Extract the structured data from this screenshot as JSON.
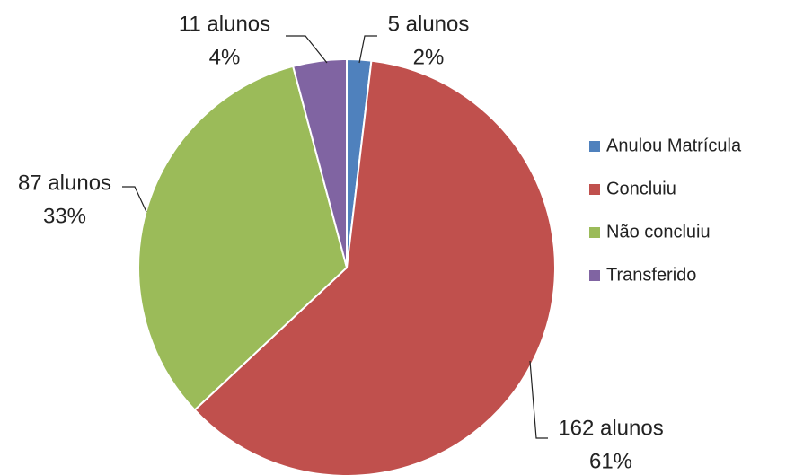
{
  "chart_data": {
    "type": "pie",
    "categories": [
      "Anulou Matrícula",
      "Concluiu",
      "Não concluiu",
      "Transferido"
    ],
    "values": [
      5,
      162,
      87,
      11
    ],
    "value_labels": [
      "5 alunos",
      "162 alunos",
      "87 alunos",
      "11 alunos"
    ],
    "percentages": [
      2,
      61,
      33,
      4
    ],
    "percentage_labels": [
      "2%",
      "61%",
      "33%",
      "4%"
    ],
    "colors": [
      "#4f81bd",
      "#c0504d",
      "#9bbb59",
      "#8064a2"
    ],
    "legend": "right"
  }
}
